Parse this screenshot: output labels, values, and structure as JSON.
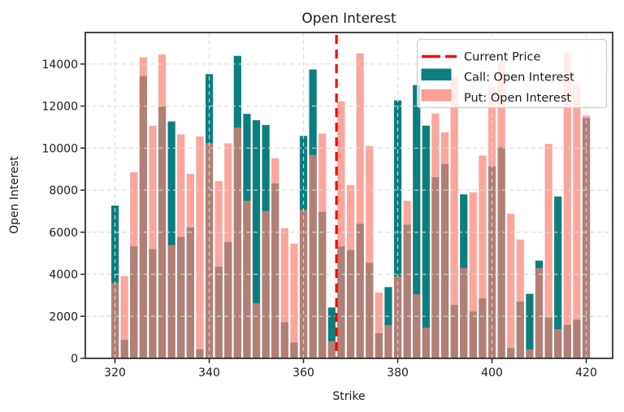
{
  "window_title": "Open Interest",
  "chart_data": {
    "type": "bar",
    "title": "Open Interest",
    "xlabel": "Strike",
    "ylabel": "Open Interest",
    "x_ticks": [
      320,
      340,
      360,
      380,
      400,
      420
    ],
    "y_ticks": [
      0,
      2000,
      4000,
      6000,
      8000,
      10000,
      12000,
      14000
    ],
    "xlim": [
      313.7,
      425.6
    ],
    "ylim": [
      0,
      15500
    ],
    "grid": "dashed, drawn above bars",
    "legend_position": "upper right",
    "current_price": 367.0,
    "current_price_label": "Current Price",
    "categories": [
      320,
      322,
      324,
      326,
      328,
      330,
      332,
      334,
      336,
      338,
      340,
      342,
      344,
      346,
      348,
      350,
      352,
      354,
      356,
      358,
      360,
      362,
      364,
      366,
      368,
      370,
      372,
      374,
      376,
      378,
      380,
      382,
      384,
      386,
      388,
      390,
      392,
      394,
      396,
      398,
      400,
      402,
      404,
      406,
      408,
      410,
      412,
      414,
      416,
      418,
      420
    ],
    "series": [
      {
        "name": "Call: Open Interest",
        "color": "#0c7e7e",
        "values": [
          7270,
          880,
          5330,
          13420,
          5200,
          11980,
          11270,
          5780,
          6230,
          430,
          13520,
          4360,
          5530,
          14390,
          11630,
          11330,
          11100,
          8320,
          1720,
          750,
          10580,
          13740,
          6970,
          2420,
          5330,
          5150,
          6400,
          4550,
          1200,
          3390,
          12270,
          6360,
          13000,
          11070,
          8620,
          9240,
          2550,
          7800,
          2230,
          2850,
          9130,
          10040,
          490,
          2700,
          3070,
          4650,
          1940,
          7700,
          1590,
          1840,
          11430
        ]
      },
      {
        "name": "Put: Open Interest",
        "color": "#FA8072",
        "alpha": 0.7,
        "values": [
          3600,
          3910,
          8850,
          14320,
          11070,
          14450,
          5390,
          10650,
          8780,
          10560,
          10230,
          8430,
          10230,
          10980,
          7500,
          2620,
          7010,
          9520,
          6200,
          5460,
          7070,
          9680,
          10690,
          810,
          12230,
          8250,
          14510,
          10100,
          3130,
          1590,
          3900,
          7500,
          3050,
          1460,
          11650,
          10750,
          13400,
          4300,
          7900,
          9650,
          12940,
          14130,
          6880,
          5650,
          430,
          4300,
          10200,
          1390,
          14550,
          13070,
          11550
        ]
      }
    ],
    "colors": {
      "call": "#0c7e7e",
      "put": "#FA8072",
      "current_price_line": "#ff0000"
    }
  }
}
